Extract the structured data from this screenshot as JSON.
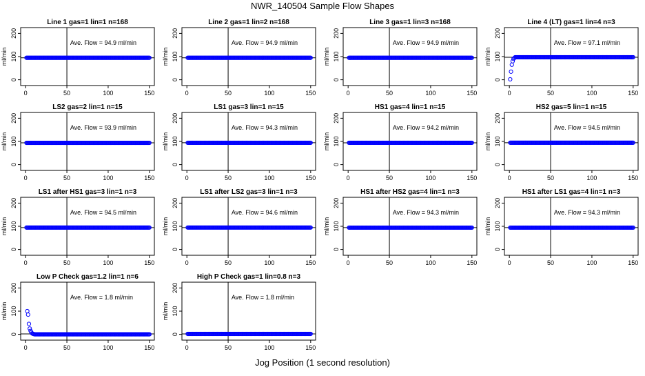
{
  "figure": {
    "title": "NWR_140504  Sample Flow Shapes",
    "xlabel": "Jog Position (1 second resolution)"
  },
  "style": {
    "point_color": "#0000ff",
    "line_color": "#000000"
  },
  "chart_data": [
    {
      "type": "scatter",
      "title": "Line 1 gas=1 lin=1 n=168",
      "annotation": "Ave. Flow = 94.9  ml/min",
      "ylabel": "ml/min",
      "xlim": [
        0,
        150
      ],
      "ylim": [
        -25,
        225
      ],
      "xticks": [
        0,
        50,
        100,
        150
      ],
      "yticks": [
        0,
        100,
        200
      ],
      "vline": 50,
      "hline": 94.9,
      "shape": "flat",
      "level": 94.9
    },
    {
      "type": "scatter",
      "title": "Line 2 gas=1 lin=2 n=168",
      "annotation": "Ave. Flow = 94.9  ml/min",
      "ylabel": "ml/min",
      "xlim": [
        0,
        150
      ],
      "ylim": [
        -25,
        225
      ],
      "xticks": [
        0,
        50,
        100,
        150
      ],
      "yticks": [
        0,
        100,
        200
      ],
      "vline": 50,
      "hline": 94.9,
      "shape": "flat",
      "level": 94.9
    },
    {
      "type": "scatter",
      "title": "Line 3 gas=1 lin=3 n=168",
      "annotation": "Ave. Flow = 94.9  ml/min",
      "ylabel": "ml/min",
      "xlim": [
        0,
        150
      ],
      "ylim": [
        -25,
        225
      ],
      "xticks": [
        0,
        50,
        100,
        150
      ],
      "yticks": [
        0,
        100,
        200
      ],
      "vline": 50,
      "hline": 94.9,
      "shape": "flat",
      "level": 94.9
    },
    {
      "type": "scatter",
      "title": "Line 4 (LT) gas=1 lin=4 n=3",
      "annotation": "Ave. Flow = 97.1  ml/min",
      "ylabel": "ml/min",
      "xlim": [
        0,
        150
      ],
      "ylim": [
        -25,
        225
      ],
      "xticks": [
        0,
        50,
        100,
        150
      ],
      "yticks": [
        0,
        100,
        200
      ],
      "vline": 50,
      "hline": 97.1,
      "shape": "rise",
      "level": 97.1,
      "initial": [
        [
          1,
          2
        ],
        [
          2,
          35
        ],
        [
          3,
          65
        ],
        [
          4,
          80
        ],
        [
          5,
          90
        ],
        [
          6,
          94
        ]
      ]
    },
    {
      "type": "scatter",
      "title": "LS2 gas=2 lin=1 n=15",
      "annotation": "Ave. Flow = 93.9  ml/min",
      "ylabel": "ml/min",
      "xlim": [
        0,
        150
      ],
      "ylim": [
        -25,
        225
      ],
      "xticks": [
        0,
        50,
        100,
        150
      ],
      "yticks": [
        0,
        100,
        200
      ],
      "vline": 50,
      "hline": 93.9,
      "shape": "flat",
      "level": 93.9
    },
    {
      "type": "scatter",
      "title": "LS1 gas=3 lin=1 n=15",
      "annotation": "Ave. Flow = 94.3  ml/min",
      "ylabel": "ml/min",
      "xlim": [
        0,
        150
      ],
      "ylim": [
        -25,
        225
      ],
      "xticks": [
        0,
        50,
        100,
        150
      ],
      "yticks": [
        0,
        100,
        200
      ],
      "vline": 50,
      "hline": 94.3,
      "shape": "flat",
      "level": 94.3
    },
    {
      "type": "scatter",
      "title": "HS1 gas=4 lin=1 n=15",
      "annotation": "Ave. Flow = 94.2  ml/min",
      "ylabel": "ml/min",
      "xlim": [
        0,
        150
      ],
      "ylim": [
        -25,
        225
      ],
      "xticks": [
        0,
        50,
        100,
        150
      ],
      "yticks": [
        0,
        100,
        200
      ],
      "vline": 50,
      "hline": 94.2,
      "shape": "flat",
      "level": 94.2
    },
    {
      "type": "scatter",
      "title": "HS2 gas=5 lin=1 n=15",
      "annotation": "Ave. Flow = 94.5  ml/min",
      "ylabel": "ml/min",
      "xlim": [
        0,
        150
      ],
      "ylim": [
        -25,
        225
      ],
      "xticks": [
        0,
        50,
        100,
        150
      ],
      "yticks": [
        0,
        100,
        200
      ],
      "vline": 50,
      "hline": 94.5,
      "shape": "flat",
      "level": 94.5
    },
    {
      "type": "scatter",
      "title": "LS1 after HS1 gas=3 lin=1 n=3",
      "annotation": "Ave. Flow = 94.5  ml/min",
      "ylabel": "ml/min",
      "xlim": [
        0,
        150
      ],
      "ylim": [
        -25,
        225
      ],
      "xticks": [
        0,
        50,
        100,
        150
      ],
      "yticks": [
        0,
        100,
        200
      ],
      "vline": 50,
      "hline": 94.5,
      "shape": "flat",
      "level": 94.5
    },
    {
      "type": "scatter",
      "title": "LS1 after LS2 gas=3 lin=1 n=3",
      "annotation": "Ave. Flow = 94.6  ml/min",
      "ylabel": "ml/min",
      "xlim": [
        0,
        150
      ],
      "ylim": [
        -25,
        225
      ],
      "xticks": [
        0,
        50,
        100,
        150
      ],
      "yticks": [
        0,
        100,
        200
      ],
      "vline": 50,
      "hline": 94.6,
      "shape": "flat",
      "level": 94.6
    },
    {
      "type": "scatter",
      "title": "HS1 after HS2 gas=4 lin=1 n=3",
      "annotation": "Ave. Flow = 94.3  ml/min",
      "ylabel": "ml/min",
      "xlim": [
        0,
        150
      ],
      "ylim": [
        -25,
        225
      ],
      "xticks": [
        0,
        50,
        100,
        150
      ],
      "yticks": [
        0,
        100,
        200
      ],
      "vline": 50,
      "hline": 94.3,
      "shape": "flat",
      "level": 94.3
    },
    {
      "type": "scatter",
      "title": "HS1 after LS1 gas=4 lin=1 n=3",
      "annotation": "Ave. Flow = 94.3  ml/min",
      "ylabel": "ml/min",
      "xlim": [
        0,
        150
      ],
      "ylim": [
        -25,
        225
      ],
      "xticks": [
        0,
        50,
        100,
        150
      ],
      "yticks": [
        0,
        100,
        200
      ],
      "vline": 50,
      "hline": 94.3,
      "shape": "flat",
      "level": 94.3
    },
    {
      "type": "scatter",
      "title": "Low P Check gas=1.2 lin=1 n=6",
      "annotation": "Ave. Flow = 1.8  ml/min",
      "ylabel": "ml/min",
      "xlim": [
        0,
        150
      ],
      "ylim": [
        -25,
        225
      ],
      "xticks": [
        0,
        50,
        100,
        150
      ],
      "yticks": [
        0,
        100,
        200
      ],
      "vline": 50,
      "hline": 1.8,
      "shape": "decay",
      "level": 0,
      "initial": [
        [
          2,
          100
        ],
        [
          3,
          85
        ],
        [
          4,
          45
        ],
        [
          5,
          25
        ],
        [
          6,
          15
        ],
        [
          7,
          8
        ],
        [
          8,
          4
        ],
        [
          9,
          2
        ],
        [
          10,
          1
        ]
      ]
    },
    {
      "type": "scatter",
      "title": "High P Check gas=1 lin=0.8 n=3",
      "annotation": "Ave. Flow = 1.8  ml/min",
      "ylabel": "ml/min",
      "xlim": [
        0,
        150
      ],
      "ylim": [
        -25,
        225
      ],
      "xticks": [
        0,
        50,
        100,
        150
      ],
      "yticks": [
        0,
        100,
        200
      ],
      "vline": 50,
      "hline": 1.8,
      "shape": "flat",
      "level": 1.8
    }
  ]
}
